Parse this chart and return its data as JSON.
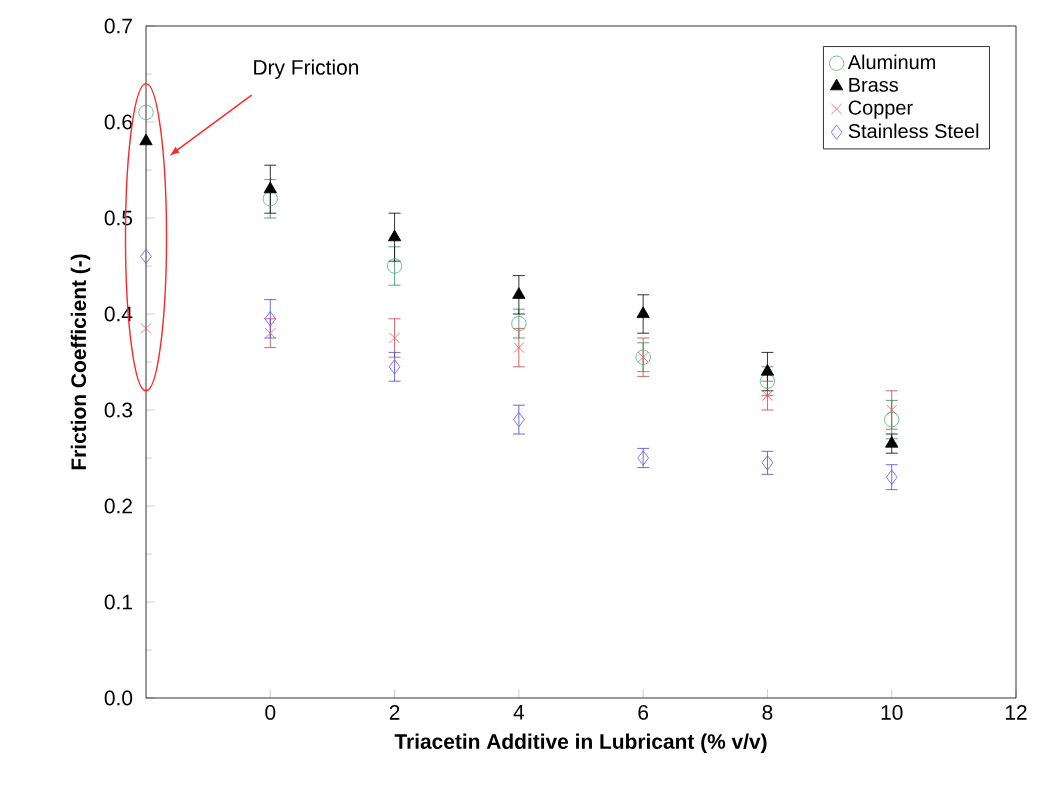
{
  "chart_data": {
    "type": "scatter",
    "xlabel": "Triacetin Additive in Lubricant (% v/v)",
    "ylabel": "Friction Coefficient (-)",
    "x": [
      -2,
      0,
      2,
      4,
      6,
      8,
      10
    ],
    "series": [
      {
        "name": "Aluminum",
        "color": "#3cb371",
        "marker": "circle",
        "values": [
          0.61,
          0.52,
          0.45,
          0.39,
          0.355,
          0.33,
          0.29
        ],
        "errors": [
          null,
          0.02,
          0.02,
          0.015,
          0.015,
          0.015,
          0.02
        ]
      },
      {
        "name": "Brass",
        "color": "#000000",
        "marker": "triangle",
        "values": [
          0.58,
          0.53,
          0.48,
          0.42,
          0.4,
          0.34,
          0.265
        ],
        "errors": [
          null,
          0.025,
          0.025,
          0.02,
          0.02,
          0.02,
          0.01
        ]
      },
      {
        "name": "Copper",
        "color": "#ff5050",
        "marker": "cross",
        "values": [
          0.385,
          0.38,
          0.375,
          0.365,
          0.355,
          0.315,
          0.3
        ],
        "errors": [
          null,
          0.015,
          0.02,
          0.02,
          0.02,
          0.015,
          0.02
        ]
      },
      {
        "name": "Stainless Steel",
        "color": "#5a5aff",
        "marker": "diamond",
        "values": [
          0.46,
          0.395,
          0.345,
          0.29,
          0.25,
          0.245,
          0.23
        ],
        "errors": [
          null,
          0.02,
          0.015,
          0.015,
          0.01,
          0.012,
          0.013
        ]
      }
    ],
    "xlim": [
      -2,
      12
    ],
    "xticks": [
      0,
      2,
      4,
      6,
      8,
      10,
      12
    ],
    "ylim": [
      0,
      0.7
    ],
    "yticks": [
      {
        "value": 0,
        "label": "0.0"
      },
      0.1,
      0.2,
      0.3,
      0.4,
      0.5,
      0.6,
      0.7
    ],
    "annotations": [
      "Dry Friction"
    ],
    "legend": "top right",
    "grid": false
  }
}
